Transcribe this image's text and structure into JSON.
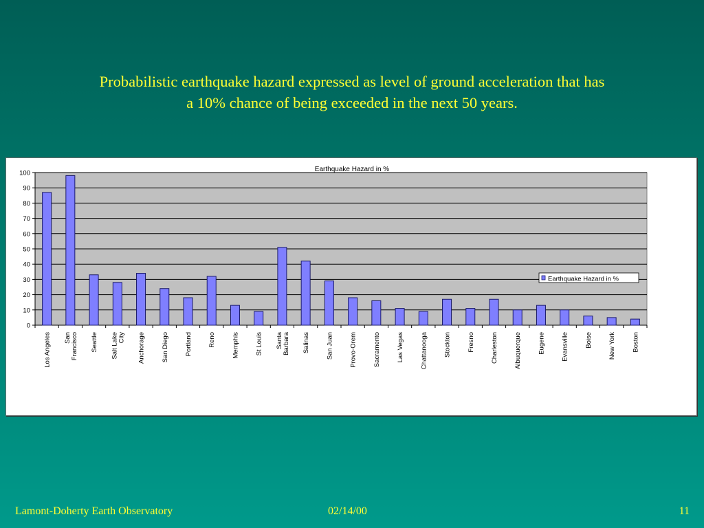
{
  "slide": {
    "title_line1": "Probabilistic earthquake hazard expressed as level of ground acceleration that has",
    "title_line2": "a 10% chance of being exceeded in the next 50 years."
  },
  "footer": {
    "organization": "Lamont-Doherty Earth Observatory",
    "date": "02/14/00",
    "page_number": "11"
  },
  "chart_data": {
    "type": "bar",
    "title": "Earthquake Hazard in %",
    "xlabel": "",
    "ylabel": "",
    "ylim": [
      0,
      100
    ],
    "yticks": [
      0,
      10,
      20,
      30,
      40,
      50,
      60,
      70,
      80,
      90,
      100
    ],
    "grid": true,
    "legend_position": "right",
    "categories": [
      "Los Angeles",
      "San Francisco",
      "Seattle",
      "Salt Lake City",
      "Anchorage",
      "San Diego",
      "Portland",
      "Reno",
      "Memphis",
      "St Louis",
      "Santa Barbara",
      "Salinas",
      "San Juan",
      "Provo-Orem",
      "Sacramento",
      "Las Vegas",
      "Chattanooga",
      "Stockton",
      "Fresno",
      "Charleston",
      "Albuquerque",
      "Eugene",
      "Evansville",
      "Boise",
      "New York",
      "Boston"
    ],
    "category_lines": [
      [
        "Los Angeles"
      ],
      [
        "San",
        "Francisco"
      ],
      [
        "Seattle"
      ],
      [
        "Salt Lake",
        "City"
      ],
      [
        "Anchorage"
      ],
      [
        "San Diego"
      ],
      [
        "Portland"
      ],
      [
        "Reno"
      ],
      [
        "Memphis"
      ],
      [
        "St Louis"
      ],
      [
        "Santa",
        "Barbara"
      ],
      [
        "Salinas"
      ],
      [
        "San Juan"
      ],
      [
        "Provo-Orem"
      ],
      [
        "Sacramento"
      ],
      [
        "Las Vegas"
      ],
      [
        "Chattanooga"
      ],
      [
        "Stockton"
      ],
      [
        "Fresno"
      ],
      [
        "Charleston"
      ],
      [
        "Albuquerque"
      ],
      [
        "Eugene"
      ],
      [
        "Evansville"
      ],
      [
        "Boise"
      ],
      [
        "New York"
      ],
      [
        "Boston"
      ]
    ],
    "series": [
      {
        "name": "Earthquake Hazard in %",
        "values": [
          87,
          98,
          33,
          28,
          34,
          24,
          18,
          32,
          13,
          9,
          51,
          42,
          29,
          18,
          16,
          11,
          9,
          17,
          11,
          17,
          10,
          13,
          10,
          6,
          5,
          4
        ]
      }
    ],
    "colors": {
      "bar_fill": "#7f7fff",
      "bar_stroke": "#1a1a6a",
      "plot_background": "#c0c0c0",
      "gridline": "#000000"
    }
  }
}
